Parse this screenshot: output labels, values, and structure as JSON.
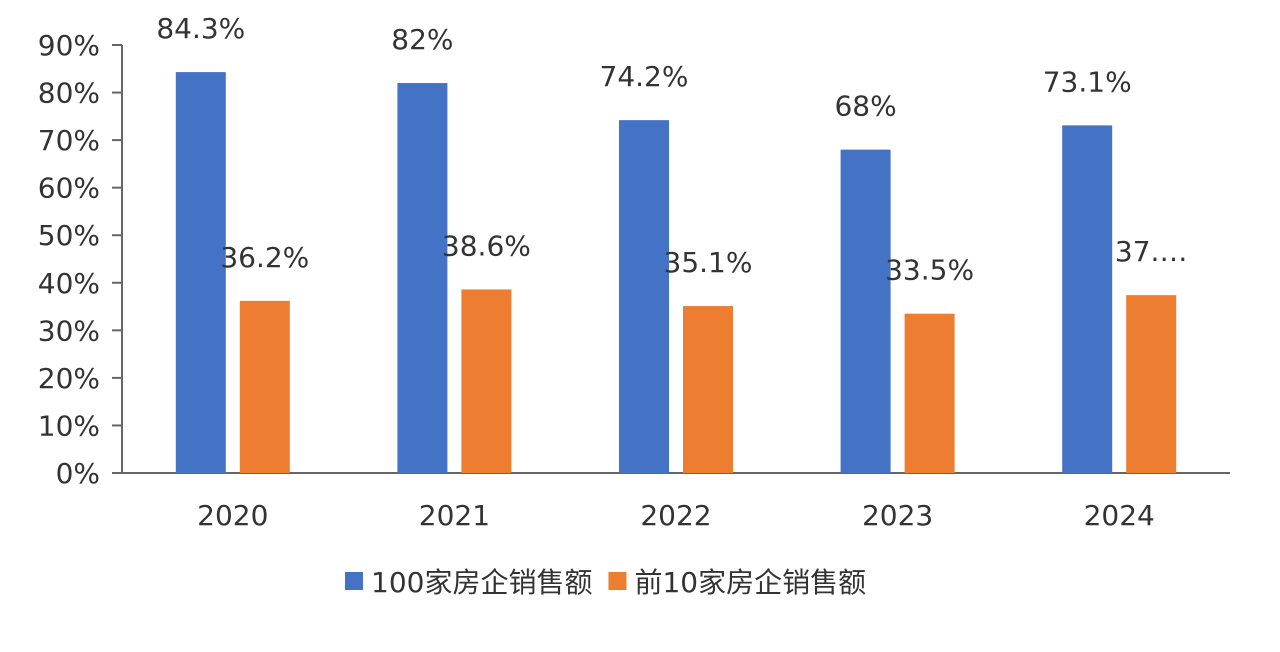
{
  "chart_data": {
    "type": "bar",
    "categories": [
      "2020",
      "2021",
      "2022",
      "2023",
      "2024"
    ],
    "series": [
      {
        "name": "100家房企销售额",
        "values": [
          84.3,
          82,
          74.2,
          68,
          73.1
        ],
        "labels": [
          "84.3%",
          "82%",
          "74.2%",
          "68%",
          "73.1%"
        ],
        "color": "#4472C4"
      },
      {
        "name": "前10家房企销售额",
        "values": [
          36.2,
          38.6,
          35.1,
          33.5,
          37.4
        ],
        "labels": [
          "36.2%",
          "38.6%",
          "35.1%",
          "33.5%",
          "37.…"
        ],
        "color": "#ED7D31"
      }
    ],
    "y_ticks": [
      "0%",
      "10%",
      "20%",
      "30%",
      "40%",
      "50%",
      "60%",
      "70%",
      "80%",
      "90%"
    ],
    "ylim": [
      0,
      90
    ],
    "grid": false,
    "legend_position": "bottom"
  }
}
